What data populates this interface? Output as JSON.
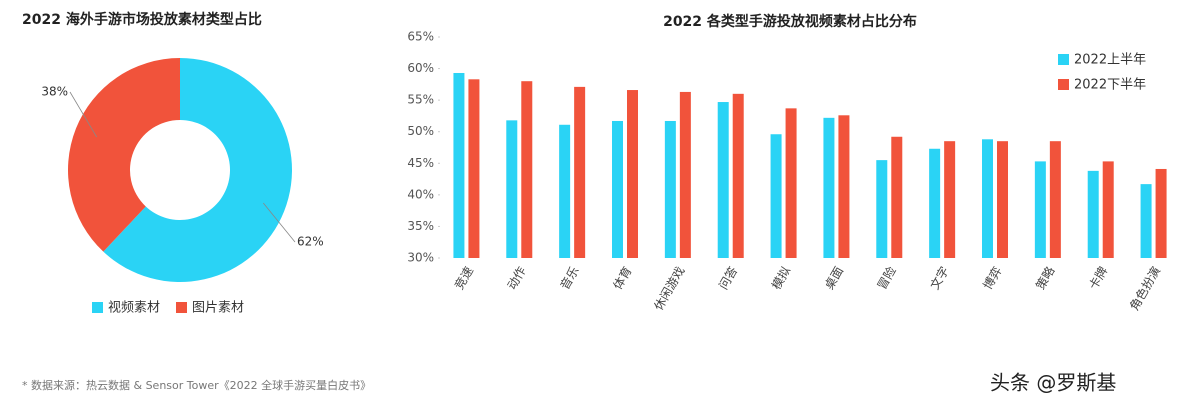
{
  "chart_data": [
    {
      "type": "pie",
      "title": "2022 海外手游市场投放素材类型占比",
      "categories": [
        "视频素材",
        "图片素材"
      ],
      "values": [
        62,
        38
      ],
      "value_labels": [
        "62%",
        "38%"
      ],
      "colors": [
        "#2ad3f5",
        "#f1533b"
      ],
      "donut": true
    },
    {
      "type": "bar",
      "title": "2022 各类型手游投放视频素材占比分布",
      "categories": [
        "竞速",
        "动作",
        "音乐",
        "体育",
        "休闲游戏",
        "问答",
        "模拟",
        "桌面",
        "冒险",
        "文字",
        "博弈",
        "策略",
        "卡牌",
        "角色扮演"
      ],
      "series": [
        {
          "name": "2022上半年",
          "color": "#2ad3f5",
          "values": [
            59.3,
            51.8,
            51.1,
            51.7,
            51.7,
            54.7,
            49.6,
            52.2,
            45.5,
            47.3,
            48.8,
            45.3,
            43.8,
            41.7
          ]
        },
        {
          "name": "2022下半年",
          "color": "#f1533b",
          "values": [
            58.3,
            58.0,
            57.1,
            56.6,
            56.3,
            56.0,
            53.7,
            52.6,
            49.2,
            48.5,
            48.5,
            48.5,
            45.3,
            44.1
          ]
        }
      ],
      "ylim": [
        30,
        65
      ],
      "yticks": [
        {
          "value": 30,
          "label": "30%"
        },
        {
          "value": 35,
          "label": "35%"
        },
        {
          "value": 40,
          "label": "40%"
        },
        {
          "value": 45,
          "label": "45%"
        },
        {
          "value": 50,
          "label": "50%"
        },
        {
          "value": 55,
          "label": "55%"
        },
        {
          "value": 60,
          "label": "60%"
        },
        {
          "value": 65,
          "label": "65%"
        }
      ],
      "legend": "upper right"
    }
  ],
  "footnote": "* 数据来源：热云数据 & Sensor Tower《2022 全球手游买量白皮书》",
  "watermark": "头条 @罗斯基"
}
